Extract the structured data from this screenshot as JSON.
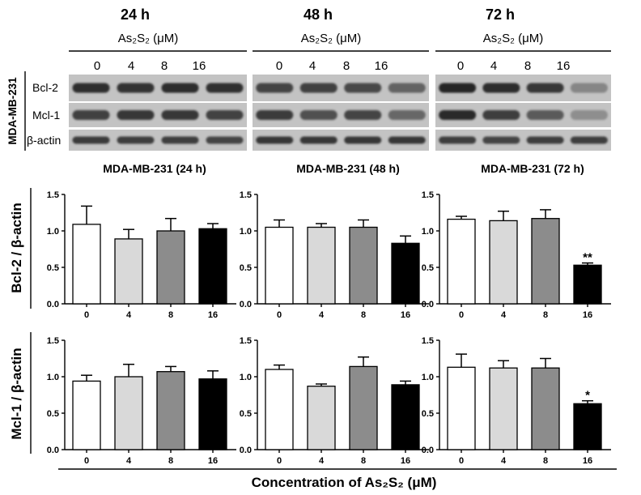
{
  "figure": {
    "cell_line_label": "MDA-MB-231",
    "shared_xlabel": "Concentration of As₂S₂ (μM)",
    "membrane_color": "#c3c3c3",
    "band_color": "#141414",
    "blot_panels": [
      {
        "time": "24 h",
        "treatment_label": "As₂S₂ (μM)",
        "lanes": [
          "0",
          "4",
          "8",
          "16"
        ]
      },
      {
        "time": "48 h",
        "treatment_label": "As₂S₂ (μM)",
        "lanes": [
          "0",
          "4",
          "8",
          "16"
        ]
      },
      {
        "time": "72 h",
        "treatment_label": "As₂S₂ (μM)",
        "lanes": [
          "0",
          "4",
          "8",
          "16"
        ]
      }
    ],
    "blot_rows": [
      {
        "label": "Bcl-2",
        "band_intensity": [
          [
            0.85,
            0.82,
            0.86,
            0.84
          ],
          [
            0.72,
            0.75,
            0.7,
            0.55
          ],
          [
            0.9,
            0.86,
            0.8,
            0.35
          ]
        ]
      },
      {
        "label": "Mcl-1",
        "band_intensity": [
          [
            0.75,
            0.8,
            0.8,
            0.74
          ],
          [
            0.78,
            0.66,
            0.72,
            0.52
          ],
          [
            0.88,
            0.76,
            0.6,
            0.3
          ]
        ]
      },
      {
        "label": "β-actin",
        "band_intensity": [
          [
            0.78,
            0.76,
            0.76,
            0.72
          ],
          [
            0.8,
            0.8,
            0.8,
            0.8
          ],
          [
            0.76,
            0.72,
            0.76,
            0.76
          ]
        ]
      }
    ]
  },
  "chart_data": [
    {
      "type": "bar",
      "title": "MDA-MB-231 (24 h)",
      "ylabel": "Bcl-2 / β-actin",
      "categories": [
        "0",
        "4",
        "8",
        "16"
      ],
      "values": [
        1.09,
        0.89,
        1.0,
        1.03
      ],
      "errors": [
        0.25,
        0.13,
        0.17,
        0.07
      ],
      "annotations": [
        "",
        "",
        "",
        ""
      ],
      "ylim": [
        0,
        1.5
      ],
      "yticks": [
        "0.0",
        "0.5",
        "1.0",
        "1.5"
      ],
      "bar_colors": [
        "#ffffff",
        "#d9d9d9",
        "#8c8c8c",
        "#000000"
      ]
    },
    {
      "type": "bar",
      "title": "MDA-MB-231 (48 h)",
      "categories": [
        "0",
        "4",
        "8",
        "16"
      ],
      "values": [
        1.05,
        1.05,
        1.05,
        0.83
      ],
      "errors": [
        0.1,
        0.05,
        0.1,
        0.1
      ],
      "annotations": [
        "",
        "",
        "",
        ""
      ],
      "ylim": [
        0,
        1.5
      ],
      "yticks": [
        "0.0",
        "0.5",
        "1.0",
        "1.5"
      ],
      "bar_colors": [
        "#ffffff",
        "#d9d9d9",
        "#8c8c8c",
        "#000000"
      ]
    },
    {
      "type": "bar",
      "title": "MDA-MB-231 (72 h)",
      "categories": [
        "0",
        "4",
        "8",
        "16"
      ],
      "values": [
        1.16,
        1.14,
        1.17,
        0.53
      ],
      "errors": [
        0.04,
        0.13,
        0.12,
        0.03
      ],
      "annotations": [
        "",
        "",
        "",
        "**"
      ],
      "ylim": [
        0,
        1.5
      ],
      "yticks": [
        "0.0",
        "0.5",
        "1.0",
        "1.5"
      ],
      "bar_colors": [
        "#ffffff",
        "#d9d9d9",
        "#8c8c8c",
        "#000000"
      ]
    },
    {
      "type": "bar",
      "ylabel": "Mcl-1 / β-actin",
      "categories": [
        "0",
        "4",
        "8",
        "16"
      ],
      "values": [
        0.94,
        1.0,
        1.07,
        0.97
      ],
      "errors": [
        0.08,
        0.17,
        0.07,
        0.11
      ],
      "annotations": [
        "",
        "",
        "",
        ""
      ],
      "ylim": [
        0,
        1.5
      ],
      "yticks": [
        "0.0",
        "0.5",
        "1.0",
        "1.5"
      ],
      "bar_colors": [
        "#ffffff",
        "#d9d9d9",
        "#8c8c8c",
        "#000000"
      ]
    },
    {
      "type": "bar",
      "categories": [
        "0",
        "4",
        "8",
        "16"
      ],
      "values": [
        1.1,
        0.87,
        1.14,
        0.89
      ],
      "errors": [
        0.06,
        0.03,
        0.13,
        0.05
      ],
      "annotations": [
        "",
        "",
        "",
        ""
      ],
      "ylim": [
        0,
        1.5
      ],
      "yticks": [
        "0.0",
        "0.5",
        "1.0",
        "1.5"
      ],
      "bar_colors": [
        "#ffffff",
        "#d9d9d9",
        "#8c8c8c",
        "#000000"
      ]
    },
    {
      "type": "bar",
      "categories": [
        "0",
        "4",
        "8",
        "16"
      ],
      "values": [
        1.13,
        1.12,
        1.12,
        0.63
      ],
      "errors": [
        0.18,
        0.1,
        0.13,
        0.04
      ],
      "annotations": [
        "",
        "",
        "",
        "*"
      ],
      "ylim": [
        0,
        1.5
      ],
      "yticks": [
        "0.0",
        "0.5",
        "1.0",
        "1.5"
      ],
      "bar_colors": [
        "#ffffff",
        "#d9d9d9",
        "#8c8c8c",
        "#000000"
      ]
    }
  ]
}
